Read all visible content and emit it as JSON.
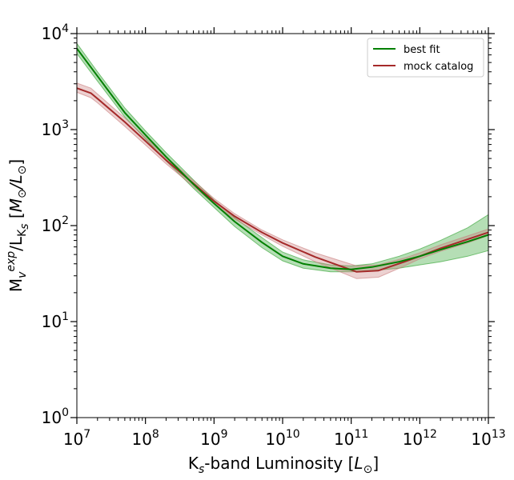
{
  "chart_data": {
    "type": "line",
    "x_scale": "log",
    "y_scale": "log",
    "xlim": [
      10000000.0,
      10000000000000.0
    ],
    "ylim": [
      1,
      10000
    ],
    "x_ticks": [
      {
        "base": "10",
        "exp": "7",
        "value": 10000000.0
      },
      {
        "base": "10",
        "exp": "8",
        "value": 100000000.0
      },
      {
        "base": "10",
        "exp": "9",
        "value": 1000000000.0
      },
      {
        "base": "10",
        "exp": "10",
        "value": 10000000000.0
      },
      {
        "base": "10",
        "exp": "11",
        "value": 100000000000.0
      },
      {
        "base": "10",
        "exp": "12",
        "value": 1000000000000.0
      },
      {
        "base": "10",
        "exp": "13",
        "value": 10000000000000.0
      }
    ],
    "y_ticks": [
      {
        "base": "10",
        "exp": "0",
        "value": 1
      },
      {
        "base": "10",
        "exp": "1",
        "value": 10
      },
      {
        "base": "10",
        "exp": "2",
        "value": 100
      },
      {
        "base": "10",
        "exp": "3",
        "value": 1000
      },
      {
        "base": "10",
        "exp": "4",
        "value": 10000
      }
    ],
    "xlabel": {
      "prefix": "K",
      "sub": "s",
      "middle": "-band Luminosity [",
      "unit": "L",
      "unit_sub": "⊙",
      "suffix": "]"
    },
    "ylabel": {
      "p1": "M",
      "p1_sub": "v",
      "p1_sup": "exp",
      "p2": "/L",
      "p2_sub": "K",
      "p2_subsub": "s",
      "p3": " [",
      "u1": "M",
      "u1_sub": "⊙",
      "u2": "/L",
      "u2_sub": "⊙",
      "p4": "]"
    },
    "legend": {
      "placement": "top-right"
    },
    "series": [
      {
        "name": "best fit",
        "color": "#008000",
        "band_color": "#2ca02c",
        "x": [
          10000000.0,
          20000000.0,
          50000000.0,
          100000000.0,
          200000000.0,
          500000000.0,
          1000000000.0,
          2000000000.0,
          5000000000.0,
          10000000000.0,
          20000000000.0,
          50000000000.0,
          100000000000.0,
          200000000000.0,
          500000000000.0,
          1000000000000.0,
          2000000000000.0,
          5000000000000.0,
          10000000000000.0
        ],
        "values": [
          7000,
          3600,
          1500,
          880,
          520,
          270,
          170,
          110,
          67,
          48,
          40,
          36,
          35,
          37,
          42,
          48,
          56,
          68,
          80
        ],
        "lower": [
          6200,
          3200,
          1350,
          800,
          470,
          245,
          155,
          98,
          59,
          43,
          36,
          33,
          33,
          34,
          36,
          39,
          42,
          48,
          55
        ],
        "upper": [
          7900,
          4000,
          1680,
          970,
          575,
          300,
          185,
          121,
          75,
          53,
          44,
          39,
          38,
          40,
          48,
          57,
          70,
          95,
          130
        ]
      },
      {
        "name": "mock catalog",
        "color": "#a52a2a",
        "band_color": "#c97c7c",
        "x": [
          10000000.0,
          16000000.0,
          20000000.0,
          50000000.0,
          100000000.0,
          200000000.0,
          500000000.0,
          1000000000.0,
          2000000000.0,
          5000000000.0,
          10000000000.0,
          30000000000.0,
          120000000000.0,
          250000000000.0,
          600000000000.0,
          1000000000000.0,
          2000000000000.0,
          5000000000000.0,
          10000000000000.0
        ],
        "values": [
          2700,
          2400,
          2100,
          1200,
          760,
          480,
          275,
          180,
          125,
          85,
          66,
          47,
          33,
          34,
          42,
          48,
          58,
          72,
          85
        ],
        "lower": [
          2450,
          2150,
          1900,
          1080,
          690,
          440,
          255,
          168,
          117,
          80,
          61,
          42,
          28,
          29,
          38,
          45,
          54,
          66,
          79
        ],
        "upper": [
          3050,
          2700,
          2350,
          1320,
          830,
          520,
          295,
          192,
          133,
          90,
          71,
          52,
          38,
          39,
          46,
          52,
          63,
          78,
          92
        ]
      }
    ]
  }
}
